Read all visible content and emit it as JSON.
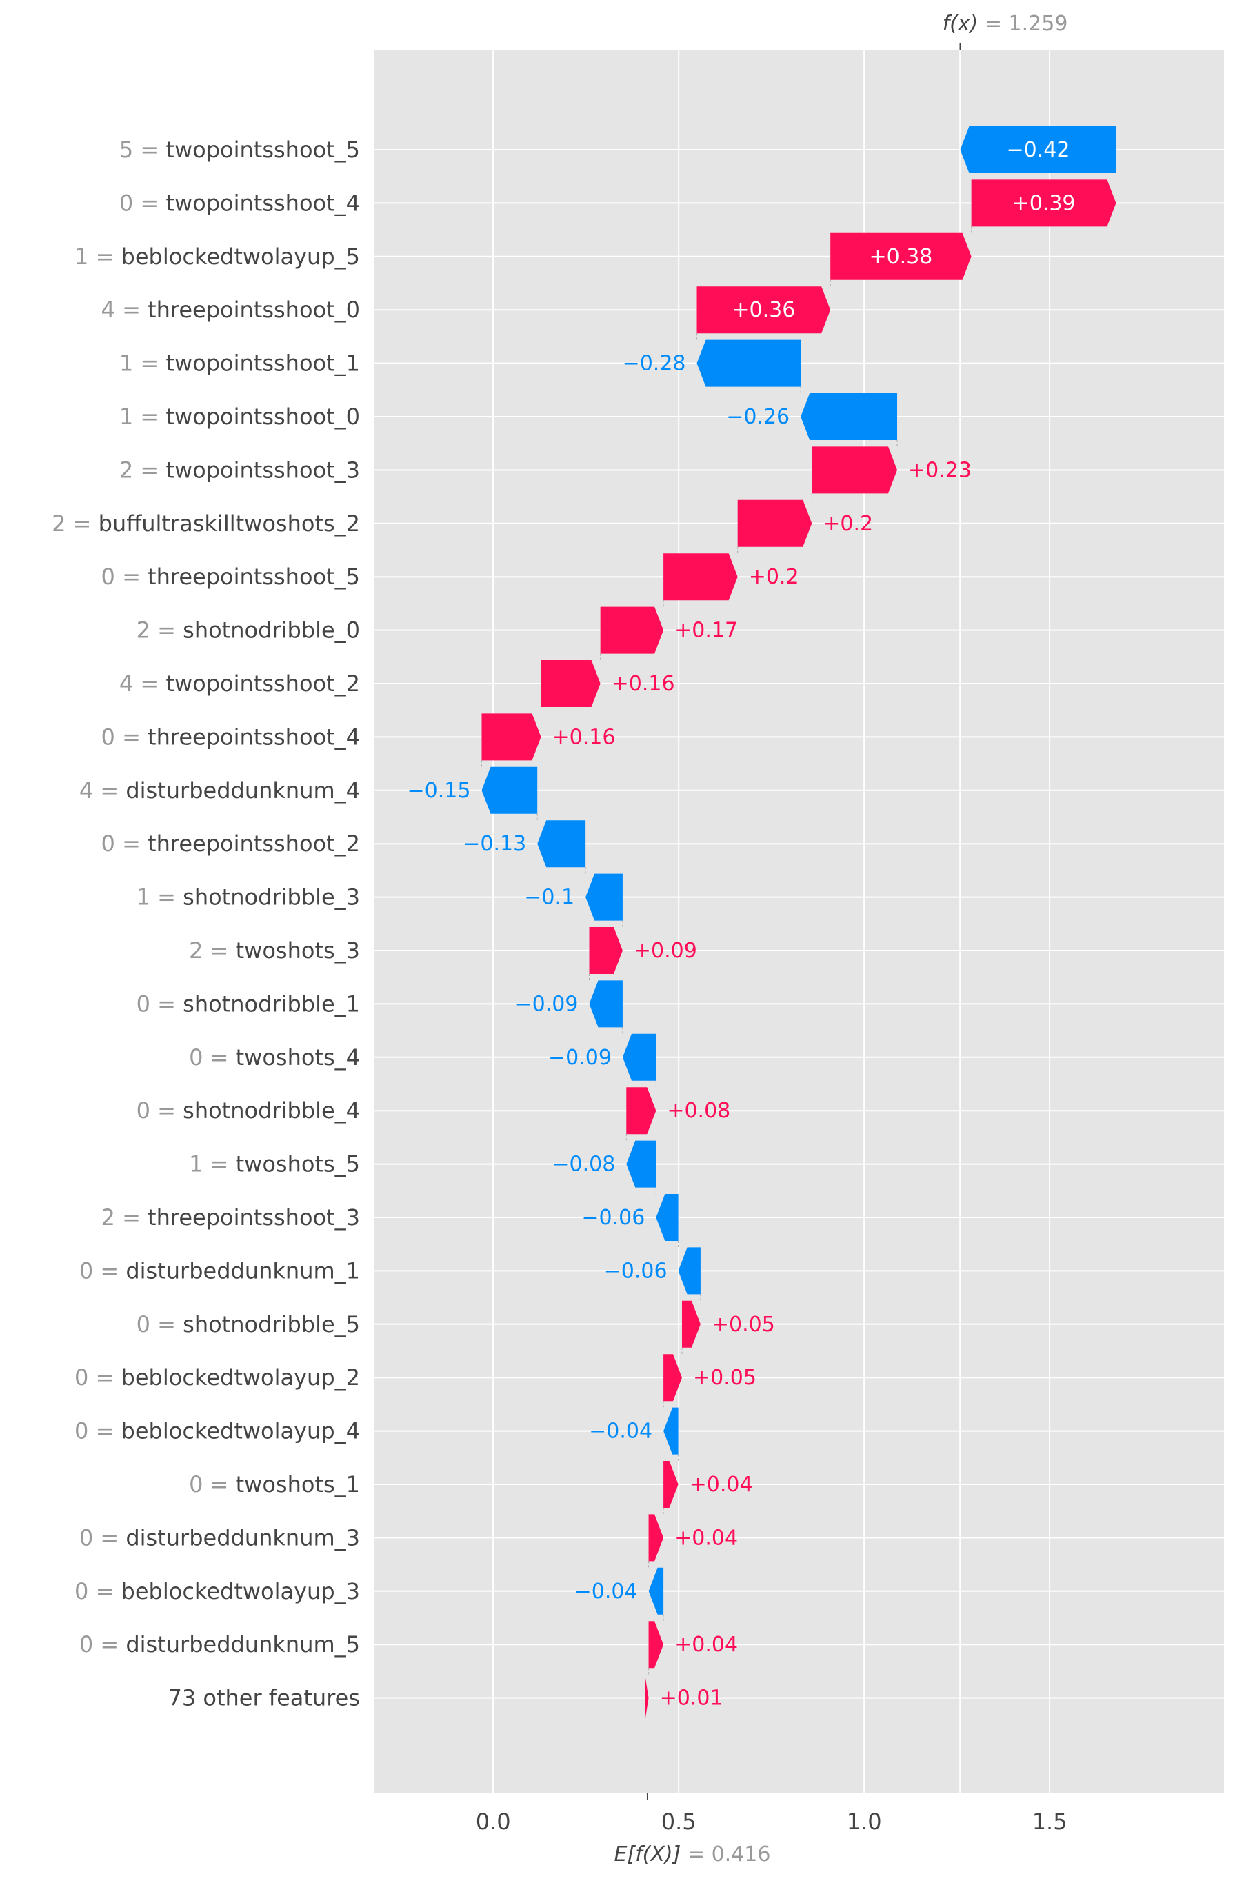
{
  "chart_data": {
    "type": "waterfall",
    "title": "",
    "xlabel": "",
    "ylabel": "",
    "xlim": [
      -0.32,
      1.97
    ],
    "x_ticks": [
      "0.0",
      "0.5",
      "1.0",
      "1.5"
    ],
    "x_tick_values": [
      0,
      0.5,
      1.0,
      1.5
    ],
    "grid": true,
    "fx": {
      "prefix": "f(x)",
      "eq": " = ",
      "value": "1.259",
      "numeric": 1.259
    },
    "efx": {
      "prefix": "E[f(X)]",
      "eq": " = ",
      "value": "0.416",
      "numeric": 0.416
    },
    "colors": {
      "positive": "#ff0d57",
      "negative": "#008bfb",
      "background": "#e5e5e5",
      "grid": "#ffffff",
      "label_value": "#999999",
      "label_name": "#444444"
    },
    "features": [
      {
        "value": "5",
        "eq": " = ",
        "name": "twopointsshoot_5",
        "shap": -0.42,
        "label": "−0.42"
      },
      {
        "value": "0",
        "eq": " = ",
        "name": "twopointsshoot_4",
        "shap": 0.39,
        "label": "+0.39"
      },
      {
        "value": "1",
        "eq": " = ",
        "name": "beblockedtwolayup_5",
        "shap": 0.38,
        "label": "+0.38"
      },
      {
        "value": "4",
        "eq": " = ",
        "name": "threepointsshoot_0",
        "shap": 0.36,
        "label": "+0.36"
      },
      {
        "value": "1",
        "eq": " = ",
        "name": "twopointsshoot_1",
        "shap": -0.28,
        "label": "−0.28"
      },
      {
        "value": "1",
        "eq": " = ",
        "name": "twopointsshoot_0",
        "shap": -0.26,
        "label": "−0.26"
      },
      {
        "value": "2",
        "eq": " = ",
        "name": "twopointsshoot_3",
        "shap": 0.23,
        "label": "+0.23"
      },
      {
        "value": "2",
        "eq": " = ",
        "name": "buffultraskilltwoshots_2",
        "shap": 0.2,
        "label": "+0.2"
      },
      {
        "value": "0",
        "eq": " = ",
        "name": "threepointsshoot_5",
        "shap": 0.2,
        "label": "+0.2"
      },
      {
        "value": "2",
        "eq": " = ",
        "name": "shotnodribble_0",
        "shap": 0.17,
        "label": "+0.17"
      },
      {
        "value": "4",
        "eq": " = ",
        "name": "twopointsshoot_2",
        "shap": 0.16,
        "label": "+0.16"
      },
      {
        "value": "0",
        "eq": " = ",
        "name": "threepointsshoot_4",
        "shap": 0.16,
        "label": "+0.16"
      },
      {
        "value": "4",
        "eq": " = ",
        "name": "disturbeddunknum_4",
        "shap": -0.15,
        "label": "−0.15"
      },
      {
        "value": "0",
        "eq": " = ",
        "name": "threepointsshoot_2",
        "shap": -0.13,
        "label": "−0.13"
      },
      {
        "value": "1",
        "eq": " = ",
        "name": "shotnodribble_3",
        "shap": -0.1,
        "label": "−0.1"
      },
      {
        "value": "2",
        "eq": " = ",
        "name": "twoshots_3",
        "shap": 0.09,
        "label": "+0.09"
      },
      {
        "value": "0",
        "eq": " = ",
        "name": "shotnodribble_1",
        "shap": -0.09,
        "label": "−0.09"
      },
      {
        "value": "0",
        "eq": " = ",
        "name": "twoshots_4",
        "shap": -0.09,
        "label": "−0.09"
      },
      {
        "value": "0",
        "eq": " = ",
        "name": "shotnodribble_4",
        "shap": 0.08,
        "label": "+0.08"
      },
      {
        "value": "1",
        "eq": " = ",
        "name": "twoshots_5",
        "shap": -0.08,
        "label": "−0.08"
      },
      {
        "value": "2",
        "eq": " = ",
        "name": "threepointsshoot_3",
        "shap": -0.06,
        "label": "−0.06"
      },
      {
        "value": "0",
        "eq": " = ",
        "name": "disturbeddunknum_1",
        "shap": -0.06,
        "label": "−0.06"
      },
      {
        "value": "0",
        "eq": " = ",
        "name": "shotnodribble_5",
        "shap": 0.05,
        "label": "+0.05"
      },
      {
        "value": "0",
        "eq": " = ",
        "name": "beblockedtwolayup_2",
        "shap": 0.05,
        "label": "+0.05"
      },
      {
        "value": "0",
        "eq": " = ",
        "name": "beblockedtwolayup_4",
        "shap": -0.04,
        "label": "−0.04"
      },
      {
        "value": "0",
        "eq": " = ",
        "name": "twoshots_1",
        "shap": 0.04,
        "label": "+0.04"
      },
      {
        "value": "0",
        "eq": " = ",
        "name": "disturbeddunknum_3",
        "shap": 0.04,
        "label": "+0.04"
      },
      {
        "value": "0",
        "eq": " = ",
        "name": "beblockedtwolayup_3",
        "shap": -0.04,
        "label": "−0.04"
      },
      {
        "value": "0",
        "eq": " = ",
        "name": "disturbeddunknum_5",
        "shap": 0.04,
        "label": "+0.04"
      },
      {
        "value": "",
        "eq": "",
        "name": "73 other features",
        "shap": 0.01,
        "label": "+0.01"
      }
    ]
  }
}
